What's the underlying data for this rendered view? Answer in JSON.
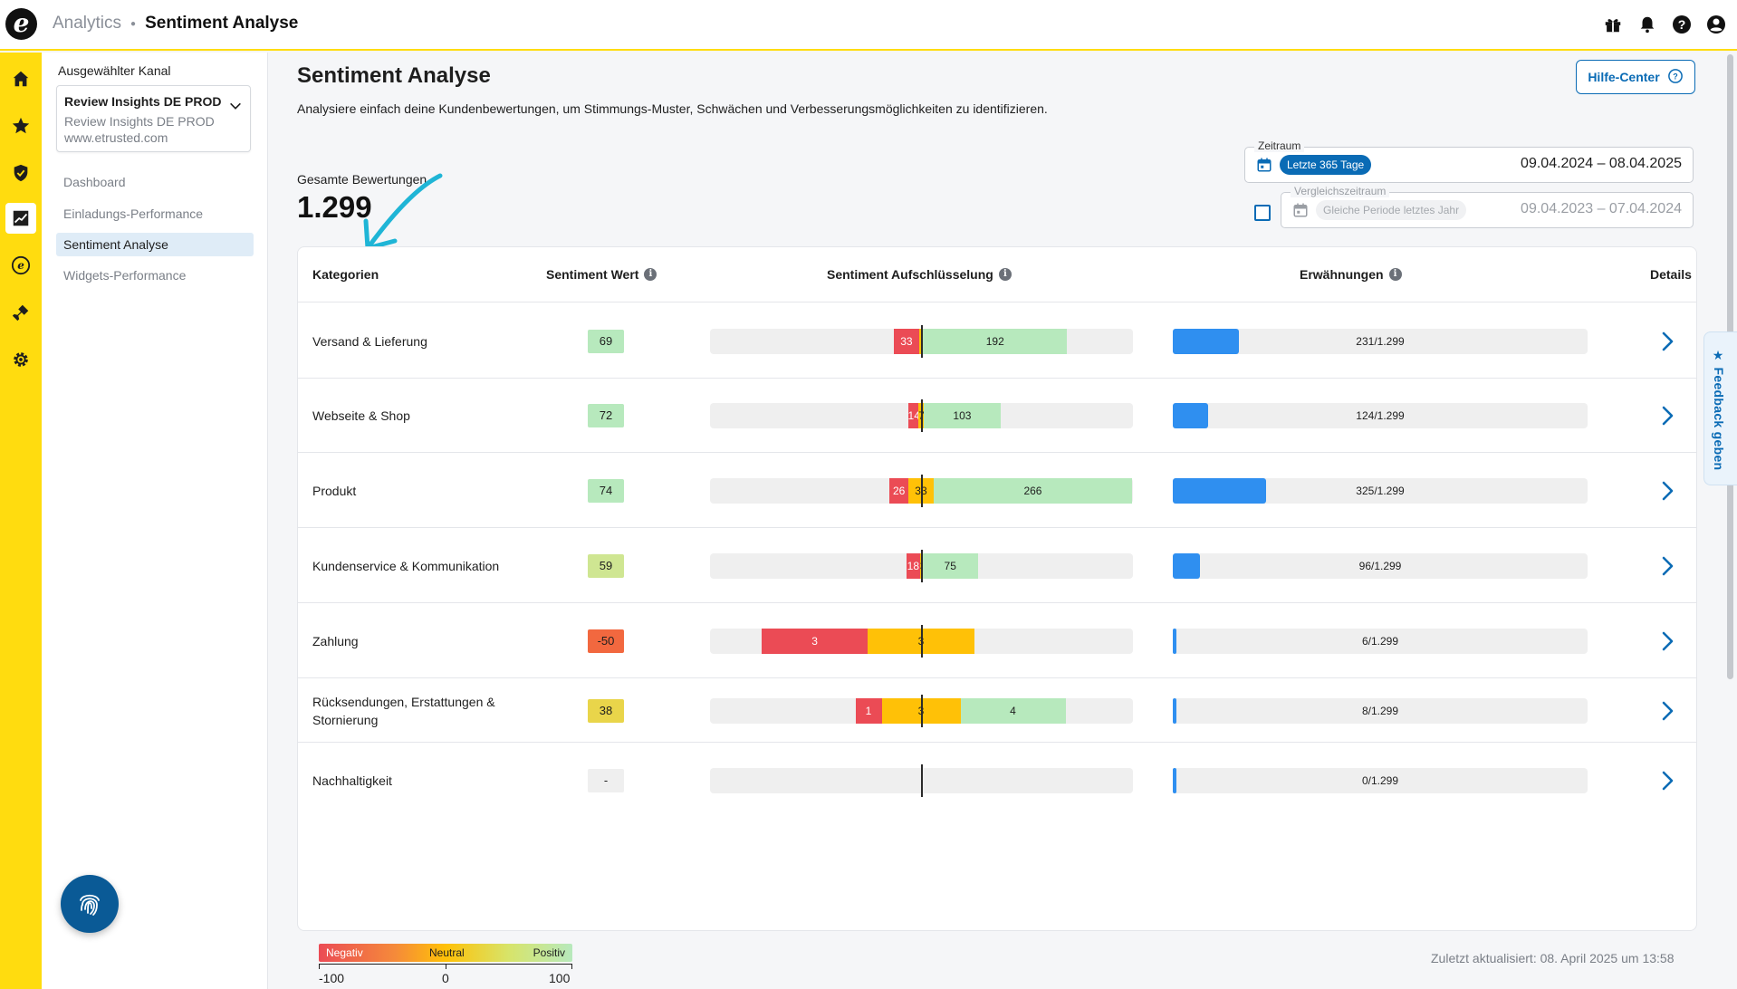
{
  "topbar": {
    "logo": "e",
    "breadcrumb_parent": "Analytics",
    "breadcrumb_current": "Sentiment Analyse",
    "icons": [
      "gift-icon",
      "bell-icon",
      "help-icon",
      "account-icon"
    ]
  },
  "rail": {
    "items": [
      "home-icon",
      "star-icon",
      "shield-icon",
      "analytics-icon",
      "etrusted-icon",
      "plugin-icon",
      "settings-icon"
    ],
    "active": "analytics-icon"
  },
  "subnav": {
    "channel_label": "Ausgewählter Kanal",
    "channel_title": "Review Insights DE PROD",
    "channel_name": "Review Insights DE PROD",
    "channel_url": "www.etrusted.com",
    "items": [
      {
        "label": "Dashboard",
        "active": false
      },
      {
        "label": "Einladungs-Performance",
        "active": false
      },
      {
        "label": "Sentiment Analyse",
        "active": true
      },
      {
        "label": "Widgets-Performance",
        "active": false
      }
    ]
  },
  "page": {
    "title": "Sentiment Analyse",
    "subtitle": "Analysiere einfach deine Kundenbewertungen, um Stimmungs-Muster, Schwächen und Verbesserungsmöglichkeiten zu identifizieren.",
    "help_button": "Hilfe-Center",
    "total_label": "Gesamte Bewertungen",
    "total_value": "1.299",
    "updated": "Zuletzt aktualisiert: 08. April 2025 um 13:58"
  },
  "period": {
    "legend": "Zeitraum",
    "chip": "Letzte 365 Tage",
    "dates": "09.04.2024 – 08.04.2025"
  },
  "compare": {
    "legend": "Vergleichszeitraum",
    "chip": "Gleiche Periode letztes Jahr",
    "dates": "09.04.2023 – 07.04.2024",
    "checked": false
  },
  "table": {
    "headers": {
      "category": "Kategorien",
      "score": "Sentiment Wert",
      "breakdown": "Sentiment Aufschlüsselung",
      "mentions": "Erwähnungen",
      "details": "Details"
    },
    "rows": [
      {
        "category": "Versand & Lieferung",
        "score": "69",
        "score_color": "#b7e9bd",
        "negative": 33,
        "neutral": 6,
        "positive": 192,
        "neg_label": "33",
        "neu_label": "",
        "pos_label": "192",
        "mentions": 231,
        "mentions_text": "231/1.299"
      },
      {
        "category": "Webseite & Shop",
        "score": "72",
        "score_color": "#b7e9bd",
        "negative": 14,
        "neutral": 7,
        "positive": 103,
        "neg_label": "14",
        "neu_label": "7",
        "pos_label": "103",
        "mentions": 124,
        "mentions_text": "124/1.299"
      },
      {
        "category": "Produkt",
        "score": "74",
        "score_color": "#b7e9bd",
        "negative": 26,
        "neutral": 33,
        "positive": 266,
        "neg_label": "26",
        "neu_label": "33",
        "pos_label": "266",
        "mentions": 325,
        "mentions_text": "325/1.299"
      },
      {
        "category": "Kundenservice & Kommunikation",
        "score": "59",
        "score_color": "#cfe692",
        "negative": 18,
        "neutral": 3,
        "positive": 75,
        "neg_label": "18",
        "neu_label": "3",
        "pos_label": "75",
        "mentions": 96,
        "mentions_text": "96/1.299"
      },
      {
        "category": "Zahlung",
        "score": "-50",
        "score_color": "#f2683f",
        "negative": 3,
        "neutral": 3,
        "positive": 0,
        "neg_label": "3",
        "neu_label": "3",
        "pos_label": "",
        "mentions": 6,
        "mentions_text": "6/1.299"
      },
      {
        "category": "Rücksendungen, Erstattungen & Stornierung",
        "score": "38",
        "score_color": "#e9d54a",
        "negative": 1,
        "neutral": 3,
        "positive": 4,
        "neg_label": "1",
        "neu_label": "3",
        "pos_label": "4",
        "mentions": 8,
        "mentions_text": "8/1.299"
      },
      {
        "category": "Nachhaltigkeit",
        "score": "-",
        "score_color": "#efefef",
        "negative": 0,
        "neutral": 0,
        "positive": 0,
        "neg_label": "",
        "neu_label": "",
        "pos_label": "",
        "mentions": 0,
        "mentions_text": "0/1.299"
      }
    ],
    "total_reviews": 1299
  },
  "legend": {
    "negative": "Negativ",
    "neutral": "Neutral",
    "positive": "Positiv",
    "min": "-100",
    "mid": "0",
    "max": "100"
  },
  "feedback": {
    "label": "Feedback geben"
  },
  "colors": {
    "brand_yellow": "#ffdc0f",
    "accent_blue": "#0a6bb5",
    "negative": "#eb4b55",
    "neutral": "#ffc107",
    "positive": "#b7e9bd",
    "mentions": "#2f8ff0"
  }
}
